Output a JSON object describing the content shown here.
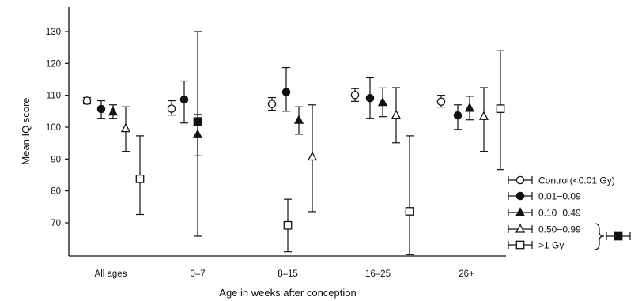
{
  "chart_data": {
    "type": "scatter",
    "title": "",
    "xlabel": "Age in weeks after conception",
    "ylabel": "Mean IQ score",
    "ylim": [
      61,
      136
    ],
    "yticks": [
      70,
      80,
      90,
      100,
      110,
      120,
      130
    ],
    "categories": [
      "All ages",
      "0–7",
      "8–15",
      "16–25",
      "26+"
    ],
    "grid": false,
    "legend_position": "right",
    "series": [
      {
        "name": "Control (<0.01 Gy)",
        "marker": "circle-open",
        "values": [
          108.3,
          105.8,
          107.3,
          110.1,
          108.0
        ],
        "lower": [
          107.3,
          103.8,
          105.3,
          108.1,
          106.3
        ],
        "upper": [
          109.3,
          108.3,
          109.3,
          112.1,
          110.0
        ]
      },
      {
        "name": "0.01−0.09",
        "marker": "circle-filled",
        "values": [
          105.7,
          108.7,
          111.0,
          109.1,
          103.7
        ],
        "lower": [
          102.8,
          101.3,
          105.0,
          102.8,
          99.3
        ],
        "upper": [
          108.3,
          114.5,
          118.7,
          115.5,
          107.0
        ]
      },
      {
        "name": "0.10−0.49",
        "marker": "triangle-filled",
        "values": [
          104.8,
          97.7,
          102.2,
          107.8,
          106.0
        ],
        "lower": [
          102.8,
          91.0,
          97.8,
          103.3,
          102.3
        ],
        "upper": [
          107.0,
          104.0,
          106.4,
          112.3,
          109.7
        ]
      },
      {
        "name": "0.50−0.99",
        "marker": "triangle-open",
        "values": [
          99.6,
          null,
          90.7,
          103.8,
          103.4
        ],
        "lower": [
          92.4,
          null,
          73.5,
          95.1,
          92.4
        ],
        "upper": [
          106.4,
          null,
          107.0,
          112.4,
          112.4
        ]
      },
      {
        "name": ">1 Gy",
        "marker": "square-open",
        "values": [
          83.8,
          null,
          69.2,
          73.6,
          105.8
        ],
        "lower": [
          72.6,
          null,
          60.9,
          60.0,
          86.7
        ],
        "upper": [
          97.3,
          null,
          77.4,
          97.3,
          124.0
        ]
      },
      {
        "name": "",
        "marker": "square-filled",
        "values": [
          null,
          101.8,
          null,
          null,
          null
        ],
        "lower": [
          null,
          65.8,
          null,
          null,
          null
        ],
        "upper": [
          null,
          130.0,
          null,
          null,
          null
        ]
      }
    ]
  }
}
